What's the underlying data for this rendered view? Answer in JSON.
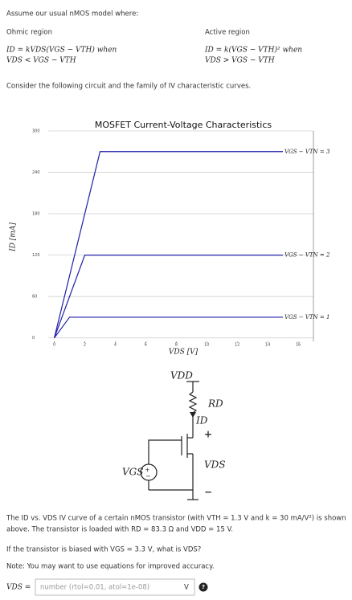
{
  "intro": "Assume our usual nMOS model where:",
  "ohmic": {
    "title": "Ohmic region",
    "line1": "ID = kVDS(VGS − VTH) when",
    "line2": "VDS < VGS − VTH"
  },
  "active": {
    "title": "Active region",
    "line1": "ID = k(VGS − VTH)² when",
    "line2": "VDS > VGS − VTH"
  },
  "consider": "Consider the following circuit and the family of IV characteristic curves.",
  "chart_data": {
    "type": "line",
    "title": "MOSFET Current-Voltage Characteristics",
    "x_label": "VDS [V]",
    "y_label": "ID [mA]",
    "series": [
      {
        "name": "VGS − VTN = 3",
        "color": "#1f1fa8",
        "x": [
          0,
          3,
          15
        ],
        "values": [
          0,
          270,
          270
        ]
      },
      {
        "name": "VGS − VTN = 2",
        "color": "#1f1fa8",
        "x": [
          0,
          2,
          15
        ],
        "values": [
          0,
          120,
          120
        ]
      },
      {
        "name": "VGS − VTN = 1",
        "color": "#1f1fa8",
        "x": [
          0,
          1,
          15
        ],
        "values": [
          0,
          30,
          30
        ]
      }
    ],
    "xlim": [
      -0.4,
      17
    ],
    "ylim": [
      -5,
      300
    ],
    "xticks": [
      0,
      2,
      4,
      6,
      8,
      10,
      12,
      14,
      16
    ],
    "yticks": [
      0,
      60,
      120,
      180,
      240,
      300
    ],
    "grid": true
  },
  "circuit": {
    "vdd": "VDD",
    "rd": "RD",
    "id": "ID",
    "plus": "+",
    "vds": "VDS",
    "minus": "−",
    "vgs": "VGS"
  },
  "question": {
    "line1": "The ID vs. VDS IV curve of a certain nMOS transistor (with VTH = 1.3 V and k = 30 mA/V²) is shown",
    "line2": "above. The transistor is loaded with RD = 83.3 Ω and VDD = 15 V.",
    "ask": "If the transistor is biased with VGS = 3.3 V, what is VDS?",
    "note": "Note: You may want to use equations for improved accuracy."
  },
  "answer": {
    "label": "VDS =",
    "placeholder": "number (rtol=0.01, atol=1e-08)",
    "unit": "V",
    "help": "?"
  }
}
